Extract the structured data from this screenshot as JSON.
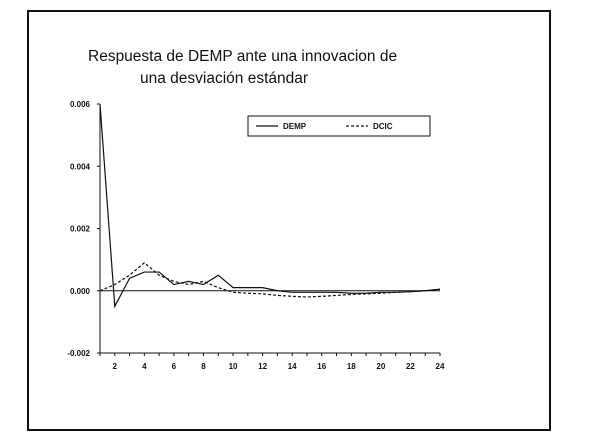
{
  "chart_data": {
    "type": "line",
    "title_line1": "Respuesta de DEMP ante una innovacion de",
    "title_line2": "una  desviación estándar",
    "xlabel": "",
    "ylabel": "",
    "x": [
      1,
      2,
      3,
      4,
      5,
      6,
      7,
      8,
      9,
      10,
      11,
      12,
      13,
      14,
      15,
      16,
      17,
      18,
      19,
      20,
      21,
      22,
      23,
      24
    ],
    "xlim": [
      1,
      24
    ],
    "ylim": [
      -0.002,
      0.006
    ],
    "xticks": [
      "2",
      "4",
      "6",
      "8",
      "10",
      "12",
      "14",
      "16",
      "18",
      "20",
      "22",
      "24"
    ],
    "yticks": [
      "0.006",
      "0.004",
      "0.002",
      "0.000",
      "-0.002"
    ],
    "ytick_values": [
      0.006,
      0.004,
      0.002,
      0.0,
      -0.002
    ],
    "xtick_values": [
      2,
      4,
      6,
      8,
      10,
      12,
      14,
      16,
      18,
      20,
      22,
      24
    ],
    "grid": false,
    "legend_position": "top-right",
    "series": [
      {
        "name": "DEMP",
        "style": "solid",
        "values": [
          0.006,
          -0.0005,
          0.0004,
          0.0006,
          0.0006,
          0.0002,
          0.0003,
          0.0002,
          0.0005,
          0.0001,
          0.0001,
          0.0001,
          0.0,
          -5e-05,
          -5e-05,
          -5e-05,
          -5e-05,
          -8e-05,
          -8e-05,
          -5e-05,
          -5e-05,
          -3e-05,
          0.0,
          5e-05
        ]
      },
      {
        "name": "DCIC",
        "style": "dashed",
        "values": [
          0.0,
          0.0002,
          0.0005,
          0.0009,
          0.0005,
          0.0003,
          0.0002,
          0.0003,
          0.0001,
          -5e-05,
          -8e-05,
          -0.0001,
          -0.00015,
          -0.00018,
          -0.0002,
          -0.00018,
          -0.00015,
          -0.00012,
          -0.0001,
          -8e-05,
          -5e-05,
          -3e-05,
          0.0,
          5e-05
        ]
      }
    ]
  }
}
